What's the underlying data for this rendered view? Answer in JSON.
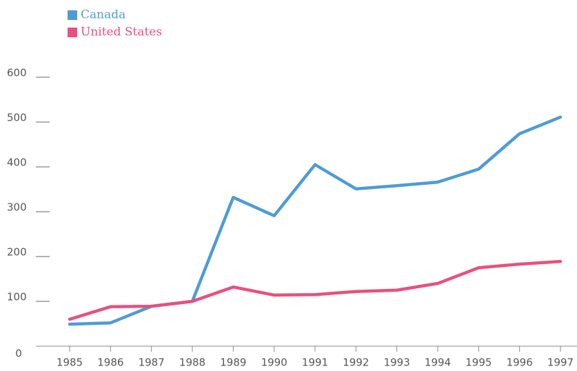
{
  "chart_data": {
    "type": "line",
    "categories": [
      "1985",
      "1986",
      "1987",
      "1988",
      "1989",
      "1990",
      "1991",
      "1992",
      "1993",
      "1994",
      "1995",
      "1996",
      "1997"
    ],
    "series": [
      {
        "name": "Canada",
        "color": "#4f9bd5",
        "values": [
          49,
          52,
          89,
          100,
          332,
          291,
          405,
          351,
          358,
          366,
          395,
          474,
          511
        ]
      },
      {
        "name": "United States",
        "color": "#e8507f",
        "values": [
          60,
          88,
          89,
          100,
          132,
          114,
          115,
          122,
          125,
          140,
          175,
          183,
          189
        ]
      }
    ],
    "ylim": [
      0,
      600
    ],
    "yticks": [
      0,
      100,
      200,
      300,
      400,
      500,
      600
    ],
    "legend": "top-left"
  }
}
